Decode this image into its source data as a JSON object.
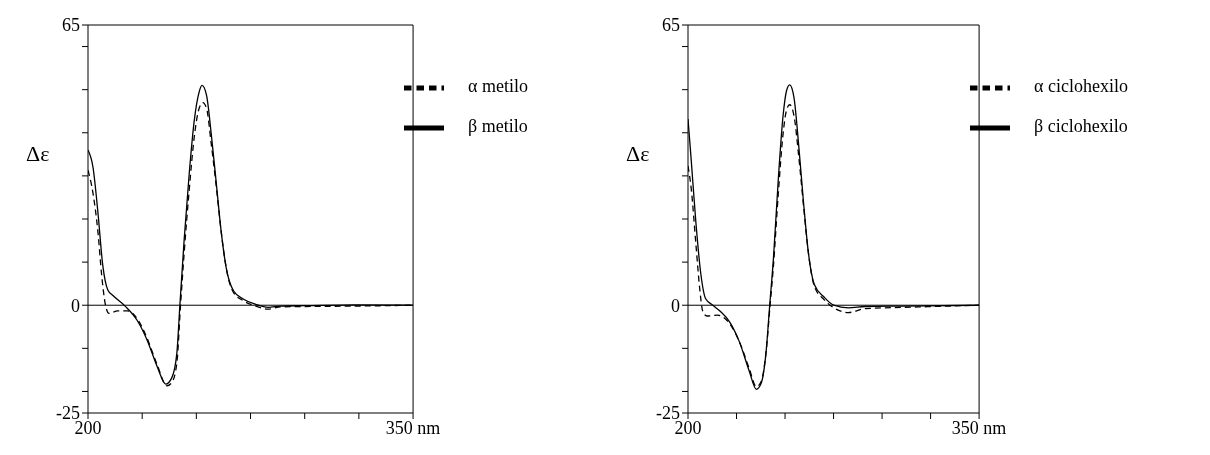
{
  "chart_data": [
    {
      "type": "line",
      "ylabel": "Δε",
      "xlim": [
        200,
        350
      ],
      "xticks": [
        200,
        {
          "value": 225,
          "label": null
        },
        {
          "value": 250,
          "label": null
        },
        {
          "value": 275,
          "label": null
        },
        {
          "value": 300,
          "label": null
        },
        {
          "value": 325,
          "label": null
        },
        {
          "value": 350,
          "label": "350 nm"
        }
      ],
      "ylim": [
        -25,
        65
      ],
      "yticks": [
        -25,
        {
          "value": -20,
          "label": null
        },
        {
          "value": -10,
          "label": null
        },
        0,
        {
          "value": 10,
          "label": null
        },
        {
          "value": 20,
          "label": null
        },
        {
          "value": 30,
          "label": null
        },
        {
          "value": 40,
          "label": null
        },
        {
          "value": 50,
          "label": null
        },
        {
          "value": 60,
          "label": null
        },
        65
      ],
      "ref_lines": [
        {
          "axis": "y",
          "value": 0,
          "color": "#000000"
        }
      ],
      "legend": "top right",
      "grid": false,
      "marker": "none",
      "series": [
        {
          "name": "β metilo",
          "color": "#000000",
          "line_style": "solid",
          "x": [
            200,
            202.3,
            204.6,
            206.8,
            209.1,
            211.4,
            217.1,
            222.8,
            227.3,
            231.9,
            235.9,
            238.7,
            241,
            242.4,
            244.4,
            246.7,
            249,
            251.3,
            252.6,
            254.7,
            256.9,
            259.2,
            261.5,
            263.8,
            267.2,
            271.8,
            277.4,
            283.1,
            288.8,
            300.2,
            323,
            350
          ],
          "values": [
            36,
            32,
            21.4,
            9.3,
            3.6,
            2.3,
            -0.2,
            -3.6,
            -8.1,
            -14.2,
            -18.3,
            -16.8,
            -11.1,
            0,
            15.4,
            30.5,
            42.7,
            49.5,
            51,
            48.7,
            39.6,
            28.3,
            16.9,
            8.6,
            3.3,
            1.4,
            0.2,
            -0.5,
            -0.2,
            -0.1,
            0.1,
            0
          ]
        },
        {
          "name": "α metilo",
          "color": "#000000",
          "line_style": "dashed",
          "x": [
            200,
            202.3,
            204.6,
            206.3,
            208,
            209.7,
            213.7,
            218.2,
            222.8,
            227.3,
            231.9,
            236.4,
            238.7,
            241,
            242.7,
            244.4,
            246.7,
            249,
            251.3,
            253,
            254.7,
            256.9,
            259.2,
            261.5,
            263.8,
            267.2,
            271.8,
            277.4,
            283.1,
            288.8,
            300.2,
            323,
            350
          ],
          "values": [
            31.3,
            26,
            16.9,
            7,
            0.2,
            -1.9,
            -1.3,
            -1.3,
            -3.2,
            -7.7,
            -13.8,
            -18.7,
            -17.9,
            -13.4,
            0,
            12.3,
            26.7,
            38.9,
            45.7,
            47,
            45.7,
            37.3,
            27.5,
            16.9,
            8.6,
            2.9,
            1,
            -0.2,
            -0.9,
            -0.4,
            -0.3,
            -0.2,
            0
          ]
        }
      ]
    },
    {
      "type": "line",
      "ylabel": "Δε",
      "xlim": [
        200,
        350
      ],
      "xticks": [
        200,
        {
          "value": 225,
          "label": null
        },
        {
          "value": 250,
          "label": null
        },
        {
          "value": 275,
          "label": null
        },
        {
          "value": 300,
          "label": null
        },
        {
          "value": 325,
          "label": null
        },
        {
          "value": 350,
          "label": "350 nm"
        }
      ],
      "ylim": [
        -25,
        65
      ],
      "yticks": [
        -25,
        {
          "value": -20,
          "label": null
        },
        {
          "value": -10,
          "label": null
        },
        0,
        {
          "value": 10,
          "label": null
        },
        {
          "value": 20,
          "label": null
        },
        {
          "value": 30,
          "label": null
        },
        {
          "value": 40,
          "label": null
        },
        {
          "value": 50,
          "label": null
        },
        {
          "value": 60,
          "label": null
        },
        65
      ],
      "ref_lines": [
        {
          "axis": "y",
          "value": 0,
          "color": "#000000"
        }
      ],
      "legend": "top right",
      "grid": false,
      "marker": "none",
      "series": [
        {
          "name": "β ciclohexilo",
          "color": "#000000",
          "line_style": "solid",
          "x": [
            200,
            201.6,
            204.1,
            206.6,
            209.1,
            212.8,
            216.6,
            221.5,
            226.5,
            231.5,
            235.2,
            237.7,
            240.2,
            242.1,
            244,
            246.5,
            249,
            250.8,
            252.4,
            254.6,
            257,
            259.5,
            262,
            265.1,
            270.1,
            275.1,
            282.6,
            291.3,
            311.2,
            350
          ],
          "values": [
            43.2,
            34,
            19,
            7.3,
            1.5,
            0,
            -1.4,
            -3.9,
            -8.5,
            -15.2,
            -19.5,
            -18.1,
            -11,
            0,
            10.7,
            29,
            44,
            49.8,
            51.1,
            48.2,
            37.3,
            24,
            12.3,
            4.8,
            1.9,
            0,
            -0.6,
            -0.3,
            -0.2,
            0
          ]
        },
        {
          "name": "α ciclohexilo",
          "color": "#000000",
          "line_style": "dashed",
          "x": [
            200,
            201.6,
            204.1,
            206,
            207.6,
            209.7,
            215.3,
            221.5,
            226.5,
            231.5,
            235.2,
            237.7,
            240.2,
            242.3,
            244,
            246.5,
            249,
            250.8,
            252.4,
            254.6,
            257,
            259.5,
            262,
            265.1,
            270.1,
            275.1,
            282.6,
            291.3,
            311.2,
            350
          ],
          "values": [
            32.3,
            27.3,
            14,
            4,
            -1.4,
            -2.5,
            -2.3,
            -4.3,
            -8.5,
            -14.6,
            -18.9,
            -17.7,
            -11,
            0,
            9,
            25.7,
            39.8,
            45.3,
            46.5,
            44,
            34.8,
            23.2,
            12.3,
            4.4,
            1.3,
            -0.6,
            -1.7,
            -0.8,
            -0.5,
            0
          ]
        }
      ]
    }
  ]
}
